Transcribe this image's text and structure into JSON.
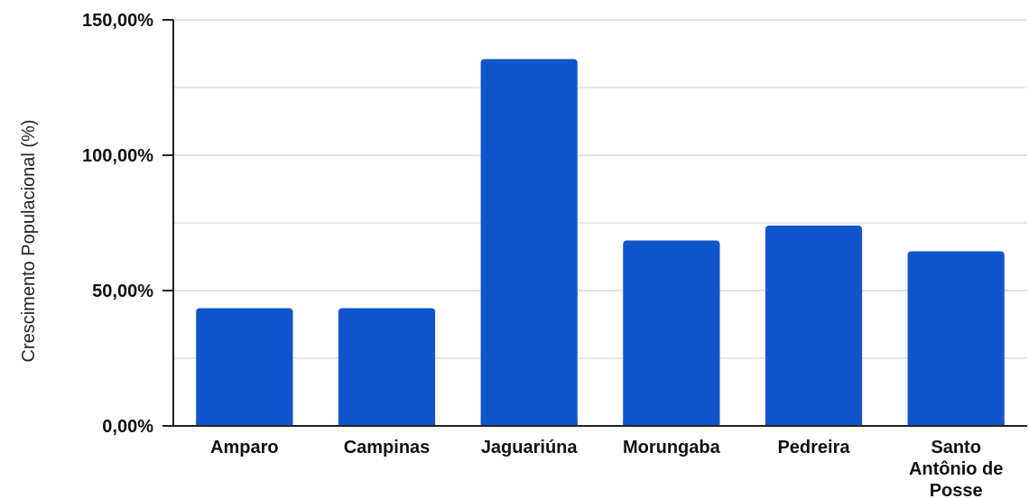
{
  "chart_data": {
    "type": "bar",
    "title": "",
    "xlabel": "",
    "ylabel": "Crescimento Populacional (%)",
    "categories": [
      [
        "Amparo"
      ],
      [
        "Campinas"
      ],
      [
        "Jaguariúna"
      ],
      [
        "Morungaba"
      ],
      [
        "Pedreira"
      ],
      [
        "Santo",
        "Antônio de",
        "Posse"
      ]
    ],
    "values": [
      43.5,
      43.5,
      135.5,
      68.5,
      74.0,
      64.5
    ],
    "ylim": [
      0,
      150
    ],
    "yticks": [
      0,
      50,
      100,
      150
    ],
    "ytick_labels": [
      "0,00%",
      "50,00%",
      "100,00%",
      "150,00%"
    ],
    "grid": true,
    "legend": "none",
    "colors": {
      "bar": "#1155cc",
      "grid": "#e0e0e0",
      "axis": "#222222"
    }
  }
}
